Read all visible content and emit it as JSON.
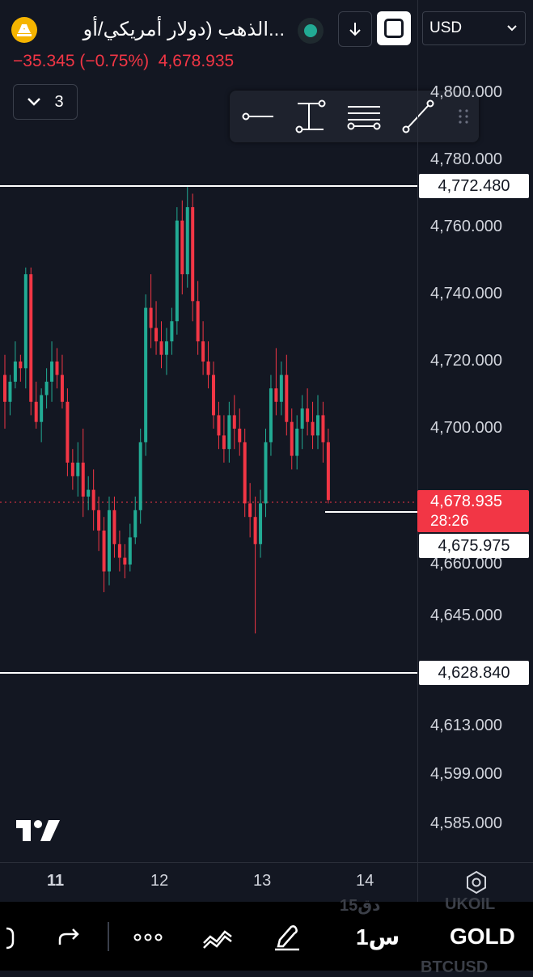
{
  "header": {
    "title": "الذهب (دولار أمريكي/أو...",
    "currency": "USD",
    "change": "−35.345 (−0.75%)",
    "last_price": "4,678.935",
    "collapse_count": "3"
  },
  "drawing_toolbar": {
    "tools": [
      "horizontal-line-icon",
      "vertical-measure-icon",
      "parallel-lines-icon",
      "trend-line-icon"
    ]
  },
  "price_axis": {
    "ticks": [
      {
        "label": "4,800.000",
        "value": 4800
      },
      {
        "label": "4,780.000",
        "value": 4780
      },
      {
        "label": "4,760.000",
        "value": 4760
      },
      {
        "label": "4,740.000",
        "value": 4740
      },
      {
        "label": "4,720.000",
        "value": 4720
      },
      {
        "label": "4,700.000",
        "value": 4700
      },
      {
        "label": "4,660.000",
        "value": 4660
      },
      {
        "label": "4,645.000",
        "value": 4645
      },
      {
        "label": "4,613.000",
        "value": 4613
      },
      {
        "label": "4,599.000",
        "value": 4599
      },
      {
        "label": "4,585.000",
        "value": 4585
      }
    ],
    "line_top": "4,772.480",
    "line_bottom": "4,628.840",
    "line_mid": "4,675.975",
    "current_price": "4,678.935",
    "countdown": "28:26"
  },
  "time_axis": {
    "ticks": [
      {
        "label": "11",
        "bold": true
      },
      {
        "label": "12",
        "bold": false
      },
      {
        "label": "13",
        "bold": false
      },
      {
        "label": "14",
        "bold": false
      }
    ]
  },
  "bottom_bar": {
    "interval": "1س",
    "symbol": "GOLD",
    "ghost_top_interval": "15دق",
    "ghost_top_symbol": "UKOIL",
    "ghost_bottom_symbol": "BTCUSD"
  },
  "colors": {
    "background": "#131722",
    "up": "#22ab94",
    "down": "#f23645",
    "text": "#d1d4dc"
  },
  "chart_data": {
    "type": "candlestick",
    "series": [
      {
        "candles": [
          [
            4716,
            4722,
            4700,
            4708
          ],
          [
            4708,
            4716,
            4704,
            4714
          ],
          [
            4714,
            4726,
            4712,
            4720
          ],
          [
            4720,
            4722,
            4714,
            4718
          ],
          [
            4718,
            4748,
            4712,
            4746
          ],
          [
            4746,
            4748,
            4704,
            4708
          ],
          [
            4708,
            4714,
            4700,
            4702
          ],
          [
            4702,
            4712,
            4696,
            4710
          ],
          [
            4710,
            4718,
            4706,
            4714
          ],
          [
            4714,
            4726,
            4708,
            4720
          ],
          [
            4720,
            4724,
            4712,
            4716
          ],
          [
            4716,
            4722,
            4706,
            4708
          ],
          [
            4708,
            4712,
            4686,
            4690
          ],
          [
            4690,
            4694,
            4682,
            4686
          ],
          [
            4686,
            4696,
            4680,
            4690
          ],
          [
            4690,
            4700,
            4674,
            4680
          ],
          [
            4680,
            4686,
            4676,
            4682
          ],
          [
            4682,
            4688,
            4670,
            4676
          ],
          [
            4676,
            4680,
            4664,
            4670
          ],
          [
            4670,
            4674,
            4652,
            4658
          ],
          [
            4658,
            4680,
            4654,
            4676
          ],
          [
            4676,
            4680,
            4662,
            4666
          ],
          [
            4666,
            4670,
            4658,
            4662
          ],
          [
            4662,
            4666,
            4656,
            4660
          ],
          [
            4660,
            4672,
            4658,
            4668
          ],
          [
            4668,
            4680,
            4666,
            4676
          ],
          [
            4676,
            4700,
            4672,
            4696
          ],
          [
            4696,
            4740,
            4692,
            4736
          ],
          [
            4736,
            4746,
            4724,
            4730
          ],
          [
            4730,
            4738,
            4722,
            4726
          ],
          [
            4726,
            4732,
            4718,
            4722
          ],
          [
            4722,
            4730,
            4716,
            4726
          ],
          [
            4726,
            4736,
            4722,
            4732
          ],
          [
            4732,
            4766,
            4728,
            4762
          ],
          [
            4762,
            4768,
            4740,
            4746
          ],
          [
            4746,
            4772,
            4742,
            4766
          ],
          [
            4766,
            4770,
            4732,
            4738
          ],
          [
            4738,
            4744,
            4722,
            4726
          ],
          [
            4726,
            4732,
            4716,
            4720
          ],
          [
            4720,
            4726,
            4712,
            4716
          ],
          [
            4716,
            4720,
            4700,
            4704
          ],
          [
            4704,
            4708,
            4694,
            4698
          ],
          [
            4698,
            4704,
            4690,
            4694
          ],
          [
            4694,
            4708,
            4690,
            4704
          ],
          [
            4704,
            4710,
            4694,
            4700
          ],
          [
            4700,
            4706,
            4692,
            4696
          ],
          [
            4696,
            4700,
            4674,
            4678
          ],
          [
            4678,
            4684,
            4668,
            4674
          ],
          [
            4674,
            4680,
            4640,
            4666
          ],
          [
            4666,
            4682,
            4662,
            4678
          ],
          [
            4678,
            4700,
            4674,
            4696
          ],
          [
            4696,
            4716,
            4692,
            4712
          ],
          [
            4712,
            4724,
            4704,
            4708
          ],
          [
            4708,
            4720,
            4704,
            4716
          ],
          [
            4716,
            4722,
            4698,
            4702
          ],
          [
            4702,
            4706,
            4688,
            4692
          ],
          [
            4692,
            4704,
            4688,
            4700
          ],
          [
            4700,
            4710,
            4694,
            4706
          ],
          [
            4706,
            4712,
            4698,
            4702
          ],
          [
            4702,
            4708,
            4694,
            4698
          ],
          [
            4698,
            4710,
            4694,
            4704
          ],
          [
            4704,
            4708,
            4690,
            4696
          ],
          [
            4696,
            4700,
            4678,
            4679
          ]
        ]
      }
    ],
    "xlabel": "",
    "ylabel": "",
    "ylim": [
      4580,
      4805
    ],
    "grid": false
  }
}
